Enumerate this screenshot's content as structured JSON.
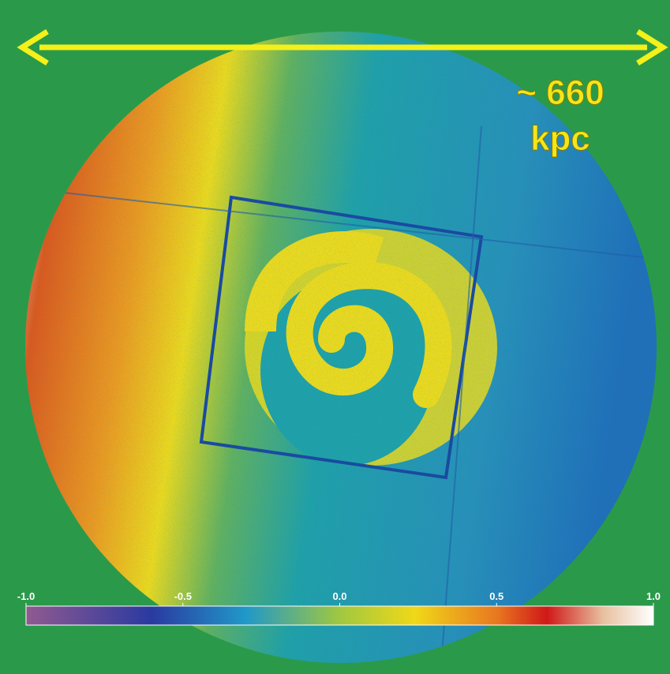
{
  "annotation": {
    "lines": [
      "~ 660",
      "kpc"
    ]
  },
  "colorbar": {
    "lim": [
      -1,
      1
    ],
    "ticks": [
      {
        "value": -1,
        "label": "-1.0"
      },
      -0.5,
      {
        "value": 0,
        "label": "0.0"
      },
      0.5,
      {
        "value": 1,
        "label": "1.0"
      }
    ]
  }
}
